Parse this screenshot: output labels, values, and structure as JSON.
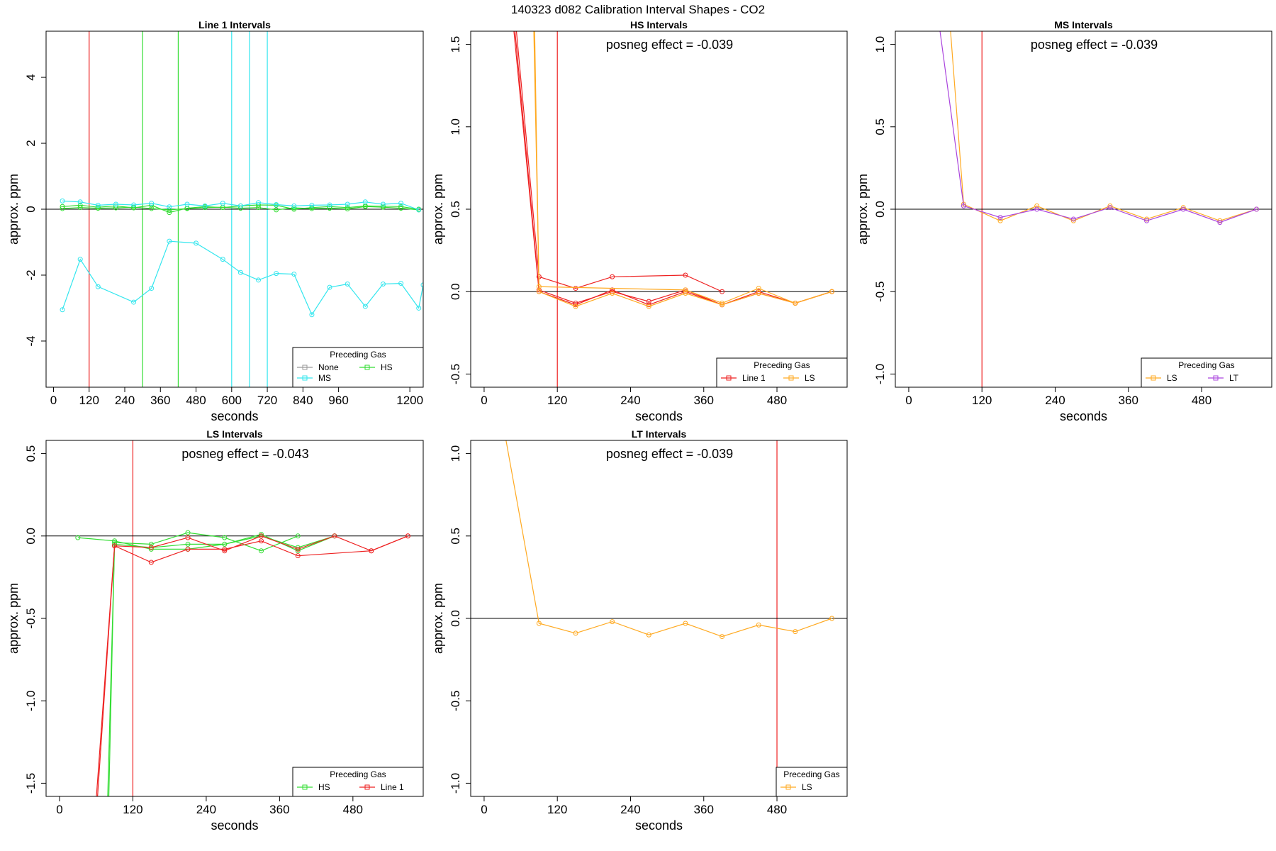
{
  "figure": {
    "suptitle": "140323  d082   Calibration Interval Shapes - CO2"
  },
  "colors": {
    "None": "#999999",
    "HS": "#33dd33",
    "MS": "#33e6ee",
    "Line 1": "#ee2222",
    "LS": "#ffaa22",
    "LT": "#aa44dd",
    "vline": "#bb2222",
    "zero": "#000000"
  },
  "chart_data": [
    {
      "type": "line",
      "title": "Line 1 Intervals",
      "xlabel": "seconds",
      "ylabel": "approx. ppm",
      "xlim": [
        -25,
        1245
      ],
      "ylim": [
        -5.4,
        5.4
      ],
      "xticks": [
        0,
        120,
        240,
        360,
        480,
        600,
        720,
        840,
        960,
        1200
      ],
      "yticks": [
        -4,
        -2,
        0,
        2,
        4
      ],
      "annotation": "",
      "legend": {
        "title": "Preceding Gas",
        "entries": [
          "None",
          "HS",
          "MS"
        ],
        "ncol": 2
      },
      "vlines": [
        {
          "x": 120,
          "color": "Line 1"
        },
        {
          "x": 300,
          "color": "HS"
        },
        {
          "x": 420,
          "color": "HS"
        },
        {
          "x": 600,
          "color": "MS"
        },
        {
          "x": 660,
          "color": "MS"
        },
        {
          "x": 720,
          "color": "MS"
        }
      ],
      "series": [
        {
          "name": "HS",
          "points": [
            [
              30,
              0.02
            ],
            [
              90,
              0.05
            ],
            [
              150,
              0.03
            ],
            [
              210,
              0.04
            ],
            [
              270,
              0.06
            ],
            [
              330,
              0.02
            ],
            [
              390,
              -0.02
            ],
            [
              450,
              0.02
            ],
            [
              510,
              0.05
            ],
            [
              570,
              0.06
            ],
            [
              630,
              0.03
            ],
            [
              690,
              0.05
            ],
            [
              750,
              -0.02
            ],
            [
              810,
              0.04
            ],
            [
              870,
              0.02
            ],
            [
              930,
              0.03
            ],
            [
              990,
              0.01
            ],
            [
              1050,
              0.08
            ],
            [
              1110,
              0.06
            ],
            [
              1170,
              0.03
            ],
            [
              1230,
              -0.02
            ]
          ]
        },
        {
          "name": "HS",
          "points": [
            [
              30,
              0.08
            ],
            [
              90,
              0.12
            ],
            [
              150,
              0.06
            ],
            [
              210,
              0.1
            ],
            [
              270,
              0.04
            ],
            [
              330,
              0.12
            ],
            [
              390,
              -0.1
            ],
            [
              450,
              0.03
            ],
            [
              510,
              0.08
            ],
            [
              570,
              0.05
            ],
            [
              630,
              0.1
            ],
            [
              690,
              0.13
            ],
            [
              750,
              0.12
            ],
            [
              810,
              0.0
            ],
            [
              870,
              0.05
            ],
            [
              930,
              0.08
            ],
            [
              990,
              0.05
            ],
            [
              1050,
              0.1
            ],
            [
              1110,
              0.09
            ],
            [
              1170,
              0.08
            ],
            [
              1230,
              0.0
            ]
          ]
        },
        {
          "name": "MS",
          "points": [
            [
              30,
              0.25
            ],
            [
              90,
              0.22
            ],
            [
              150,
              0.12
            ],
            [
              210,
              0.15
            ],
            [
              270,
              0.13
            ],
            [
              330,
              0.18
            ],
            [
              390,
              0.07
            ],
            [
              450,
              0.15
            ],
            [
              510,
              0.1
            ],
            [
              570,
              0.18
            ],
            [
              630,
              0.1
            ],
            [
              690,
              0.2
            ],
            [
              750,
              0.14
            ],
            [
              810,
              0.1
            ],
            [
              870,
              0.12
            ],
            [
              930,
              0.13
            ],
            [
              990,
              0.15
            ],
            [
              1050,
              0.22
            ],
            [
              1110,
              0.15
            ],
            [
              1170,
              0.18
            ],
            [
              1230,
              -0.02
            ]
          ]
        },
        {
          "name": "MS",
          "points": [
            [
              30,
              -3.05
            ],
            [
              90,
              -1.52
            ],
            [
              150,
              -2.35
            ],
            [
              270,
              -2.82
            ],
            [
              330,
              -2.4
            ],
            [
              390,
              -0.97
            ],
            [
              480,
              -1.03
            ],
            [
              570,
              -1.52
            ],
            [
              630,
              -1.92
            ],
            [
              690,
              -2.15
            ],
            [
              750,
              -1.95
            ],
            [
              810,
              -1.97
            ],
            [
              870,
              -3.2
            ],
            [
              930,
              -2.37
            ],
            [
              990,
              -2.27
            ],
            [
              1050,
              -2.95
            ],
            [
              1110,
              -2.27
            ],
            [
              1170,
              -2.25
            ],
            [
              1230,
              -3.0
            ],
            [
              1245,
              -2.3
            ]
          ]
        }
      ]
    },
    {
      "type": "line",
      "title": "HS Intervals",
      "xlabel": "seconds",
      "ylabel": "approx. ppm",
      "xlim": [
        -22,
        595
      ],
      "ylim": [
        -0.58,
        1.58
      ],
      "xticks": [
        0,
        120,
        240,
        360,
        480
      ],
      "yticks": [
        -0.5,
        0.0,
        0.5,
        1.0,
        1.5
      ],
      "annotation": "posneg effect = -0.039",
      "legend": {
        "title": "Preceding Gas",
        "entries": [
          "Line 1",
          "LS"
        ],
        "ncol": 2
      },
      "vlines": [
        {
          "x": 120,
          "color": "Line 1"
        }
      ],
      "series": [
        {
          "name": "Line 1",
          "points": [
            [
              30,
              2.5
            ],
            [
              90,
              0.09
            ],
            [
              150,
              0.02
            ],
            [
              210,
              0.09
            ],
            [
              330,
              0.1
            ],
            [
              390,
              0.0
            ]
          ]
        },
        {
          "name": "Line 1",
          "points": [
            [
              30,
              2.4
            ],
            [
              90,
              0.01
            ],
            [
              150,
              -0.07
            ],
            [
              210,
              0.0
            ],
            [
              270,
              -0.06
            ],
            [
              330,
              0.01
            ],
            [
              390,
              -0.08
            ],
            [
              450,
              0.0
            ],
            [
              510,
              -0.07
            ],
            [
              570,
              0.0
            ]
          ]
        },
        {
          "name": "Line 1",
          "points": [
            [
              30,
              2.3
            ],
            [
              90,
              0.0
            ],
            [
              150,
              -0.08
            ],
            [
              210,
              0.01
            ],
            [
              270,
              -0.08
            ],
            [
              330,
              0.0
            ],
            [
              390,
              -0.08
            ],
            [
              450,
              -0.01
            ],
            [
              510,
              -0.07
            ],
            [
              570,
              0.0
            ]
          ]
        },
        {
          "name": "LS",
          "points": [
            [
              78,
              2.2
            ],
            [
              90,
              0.03
            ],
            [
              330,
              0.01
            ],
            [
              390,
              -0.07
            ],
            [
              450,
              0.02
            ],
            [
              510,
              -0.07
            ],
            [
              570,
              0.0
            ]
          ]
        },
        {
          "name": "LS",
          "points": [
            [
              80,
              2.2
            ],
            [
              90,
              0.0
            ],
            [
              150,
              -0.09
            ],
            [
              210,
              -0.01
            ],
            [
              270,
              -0.09
            ],
            [
              330,
              -0.01
            ],
            [
              390,
              -0.08
            ],
            [
              450,
              -0.01
            ],
            [
              510,
              -0.07
            ],
            [
              570,
              0.0
            ]
          ]
        }
      ]
    },
    {
      "type": "line",
      "title": "MS Intervals",
      "xlabel": "seconds",
      "ylabel": "approx. ppm",
      "xlim": [
        -22,
        595
      ],
      "ylim": [
        -1.08,
        1.08
      ],
      "xticks": [
        0,
        120,
        240,
        360,
        480
      ],
      "yticks": [
        -1.0,
        -0.5,
        0.0,
        0.5,
        1.0
      ],
      "annotation": "posneg effect = -0.039",
      "legend": {
        "title": "Preceding Gas",
        "entries": [
          "LS",
          "LT"
        ],
        "ncol": 2
      },
      "vlines": [
        {
          "x": 120,
          "color": "Line 1"
        }
      ],
      "series": [
        {
          "name": "LS",
          "points": [
            [
              65,
              1.25
            ],
            [
              90,
              0.03
            ],
            [
              150,
              -0.07
            ],
            [
              210,
              0.02
            ],
            [
              270,
              -0.07
            ],
            [
              330,
              0.02
            ],
            [
              390,
              -0.06
            ],
            [
              450,
              0.01
            ],
            [
              510,
              -0.07
            ],
            [
              570,
              0.0
            ]
          ]
        },
        {
          "name": "LT",
          "points": [
            [
              45,
              1.25
            ],
            [
              90,
              0.02
            ],
            [
              150,
              -0.05
            ],
            [
              210,
              0.0
            ],
            [
              270,
              -0.06
            ],
            [
              330,
              0.01
            ],
            [
              390,
              -0.07
            ],
            [
              450,
              0.0
            ],
            [
              510,
              -0.08
            ],
            [
              570,
              0.0
            ]
          ]
        }
      ]
    },
    {
      "type": "line",
      "title": "LS Intervals",
      "xlabel": "seconds",
      "ylabel": "approx. ppm",
      "xlim": [
        -22,
        595
      ],
      "ylim": [
        -1.58,
        0.58
      ],
      "xticks": [
        0,
        120,
        240,
        360,
        480
      ],
      "yticks": [
        -1.5,
        -1.0,
        -0.5,
        0.0,
        0.5
      ],
      "annotation": "posneg effect = -0.043",
      "legend": {
        "title": "Preceding Gas",
        "entries": [
          "HS",
          "Line 1"
        ],
        "ncol": 2
      },
      "vlines": [
        {
          "x": 120,
          "color": "Line 1"
        }
      ],
      "series": [
        {
          "name": "HS",
          "points": [
            [
              30,
              -0.01
            ],
            [
              90,
              -0.03
            ],
            [
              150,
              -0.08
            ],
            [
              210,
              -0.08
            ],
            [
              270,
              -0.05
            ],
            [
              330,
              0.01
            ],
            [
              390,
              -0.09
            ],
            [
              450,
              0.0
            ]
          ]
        },
        {
          "name": "HS",
          "points": [
            [
              80,
              -1.7
            ],
            [
              90,
              -0.04
            ],
            [
              150,
              -0.05
            ],
            [
              210,
              0.02
            ],
            [
              270,
              -0.01
            ],
            [
              330,
              -0.09
            ],
            [
              390,
              0.0
            ]
          ]
        },
        {
          "name": "HS",
          "points": [
            [
              78,
              -1.7
            ],
            [
              90,
              -0.05
            ],
            [
              150,
              -0.07
            ],
            [
              210,
              -0.05
            ],
            [
              270,
              -0.05
            ],
            [
              330,
              0.0
            ],
            [
              390,
              -0.07
            ],
            [
              450,
              0.0
            ]
          ]
        },
        {
          "name": "Line 1",
          "points": [
            [
              58,
              -1.7
            ],
            [
              90,
              -0.06
            ],
            [
              150,
              -0.16
            ],
            [
              210,
              -0.08
            ],
            [
              270,
              -0.08
            ],
            [
              330,
              -0.03
            ],
            [
              390,
              -0.12
            ],
            [
              510,
              -0.09
            ],
            [
              570,
              0.0
            ]
          ]
        },
        {
          "name": "Line 1",
          "points": [
            [
              60,
              -1.7
            ],
            [
              90,
              -0.06
            ],
            [
              150,
              -0.07
            ],
            [
              210,
              -0.01
            ],
            [
              270,
              -0.09
            ],
            [
              330,
              0.0
            ],
            [
              390,
              -0.08
            ],
            [
              450,
              0.0
            ],
            [
              510,
              -0.09
            ],
            [
              570,
              0.0
            ]
          ]
        }
      ]
    },
    {
      "type": "line",
      "title": "LT Intervals",
      "xlabel": "seconds",
      "ylabel": "approx. ppm",
      "xlim": [
        -22,
        595
      ],
      "ylim": [
        -1.08,
        1.08
      ],
      "xticks": [
        0,
        120,
        240,
        360,
        480
      ],
      "yticks": [
        -1.0,
        -0.5,
        0.0,
        0.5,
        1.0
      ],
      "annotation": "posneg effect = -0.039",
      "legend": {
        "title": "Preceding Gas",
        "entries": [
          "LS"
        ],
        "ncol": 1
      },
      "vlines": [
        {
          "x": 480,
          "color": "Line 1"
        }
      ],
      "series": [
        {
          "name": "LS",
          "points": [
            [
              30,
              1.2
            ],
            [
              90,
              -0.03
            ],
            [
              150,
              -0.09
            ],
            [
              210,
              -0.02
            ],
            [
              270,
              -0.1
            ],
            [
              330,
              -0.03
            ],
            [
              390,
              -0.11
            ],
            [
              450,
              -0.04
            ],
            [
              510,
              -0.08
            ],
            [
              570,
              0.0
            ]
          ]
        }
      ]
    }
  ]
}
